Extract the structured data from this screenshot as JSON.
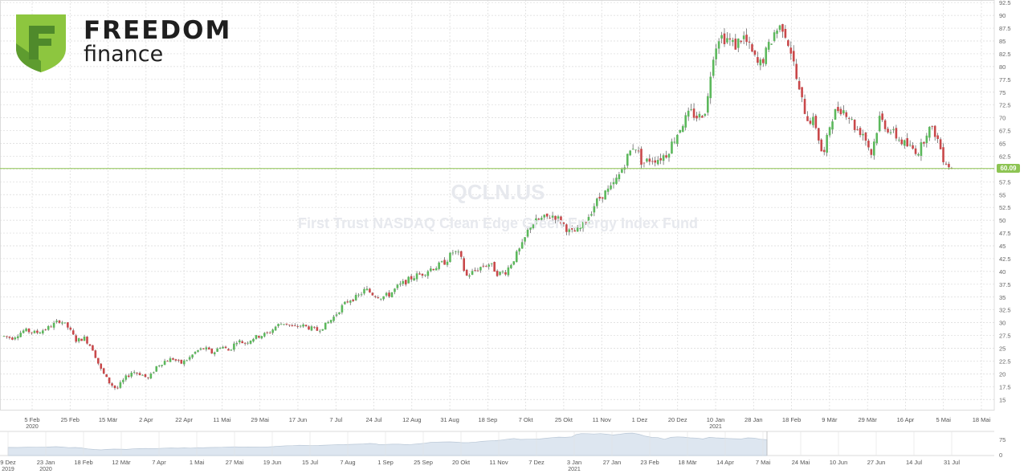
{
  "brand": {
    "name_line1": "FREEDOM",
    "name_line2": "finance",
    "colors": {
      "light": "#8dc63f",
      "dark": "#4f8a2b"
    }
  },
  "watermark": {
    "ticker": "QCLN.US",
    "name": "First Trust NASDAQ Clean Edge Green Energy Index Fund"
  },
  "last_price": "60.09",
  "chart_data": {
    "type": "candlestick",
    "title": "QCLN.US",
    "subtitle": "First Trust NASDAQ Clean Edge Green Energy Index Fund",
    "ylim": [
      13,
      93
    ],
    "y_ticks": [
      "15",
      "17.5",
      "20",
      "22.5",
      "25",
      "27.5",
      "30",
      "32.5",
      "35",
      "37.5",
      "40",
      "42.5",
      "45",
      "47.5",
      "50",
      "52.5",
      "55",
      "57.5",
      "60",
      "62.5",
      "65",
      "67.5",
      "70",
      "72.5",
      "75",
      "77.5",
      "80",
      "82.5",
      "85",
      "87.5",
      "90",
      "92.5"
    ],
    "x_ticks": [
      {
        "label": "5 Feb",
        "sub": "2020"
      },
      {
        "label": "25 Feb"
      },
      {
        "label": "15 Mär"
      },
      {
        "label": "2 Apr"
      },
      {
        "label": "22 Apr"
      },
      {
        "label": "11 Mai"
      },
      {
        "label": "29 Mai"
      },
      {
        "label": "17 Jun"
      },
      {
        "label": "7 Jul"
      },
      {
        "label": "24 Jul"
      },
      {
        "label": "12 Aug"
      },
      {
        "label": "31 Aug"
      },
      {
        "label": "18 Sep"
      },
      {
        "label": "7 Okt"
      },
      {
        "label": "25 Okt"
      },
      {
        "label": "11 Nov"
      },
      {
        "label": "1 Dez"
      },
      {
        "label": "20 Dez"
      },
      {
        "label": "10 Jan",
        "sub": "2021"
      },
      {
        "label": "28 Jan"
      },
      {
        "label": "18 Feb"
      },
      {
        "label": "9 Mär"
      },
      {
        "label": "29 Mär"
      },
      {
        "label": "16 Apr"
      },
      {
        "label": "5 Mai"
      },
      {
        "label": "18 Mai"
      }
    ],
    "anchors": [
      [
        0,
        27.5
      ],
      [
        15,
        27
      ],
      [
        30,
        28.5
      ],
      [
        45,
        28
      ],
      [
        60,
        29
      ],
      [
        75,
        30.5
      ],
      [
        85,
        29
      ],
      [
        95,
        26.5
      ],
      [
        105,
        27
      ],
      [
        115,
        25
      ],
      [
        125,
        21
      ],
      [
        135,
        18.5
      ],
      [
        145,
        17
      ],
      [
        155,
        19
      ],
      [
        165,
        20.5
      ],
      [
        175,
        20
      ],
      [
        185,
        19
      ],
      [
        195,
        21.5
      ],
      [
        205,
        22.5
      ],
      [
        215,
        23
      ],
      [
        225,
        22
      ],
      [
        235,
        23
      ],
      [
        245,
        24.5
      ],
      [
        255,
        25
      ],
      [
        265,
        24
      ],
      [
        275,
        25.5
      ],
      [
        285,
        24.5
      ],
      [
        295,
        26.5
      ],
      [
        305,
        26
      ],
      [
        315,
        27
      ],
      [
        325,
        27.5
      ],
      [
        335,
        28
      ],
      [
        345,
        29.5
      ],
      [
        355,
        30
      ],
      [
        365,
        29
      ],
      [
        375,
        29.5
      ],
      [
        385,
        29
      ],
      [
        395,
        28.5
      ],
      [
        405,
        29.5
      ],
      [
        415,
        31
      ],
      [
        425,
        33
      ],
      [
        435,
        34.5
      ],
      [
        445,
        35
      ],
      [
        455,
        36.5
      ],
      [
        465,
        35.5
      ],
      [
        475,
        35
      ],
      [
        485,
        35.5
      ],
      [
        495,
        37
      ],
      [
        505,
        38
      ],
      [
        515,
        39
      ],
      [
        525,
        39.5
      ],
      [
        535,
        40.5
      ],
      [
        545,
        41
      ],
      [
        555,
        42
      ],
      [
        565,
        44
      ],
      [
        573,
        43
      ],
      [
        580,
        39
      ],
      [
        590,
        40
      ],
      [
        600,
        41
      ],
      [
        610,
        41.5
      ],
      [
        620,
        39.5
      ],
      [
        630,
        40
      ],
      [
        640,
        42.5
      ],
      [
        650,
        45
      ],
      [
        660,
        49
      ],
      [
        670,
        50
      ],
      [
        680,
        50.5
      ],
      [
        690,
        51
      ],
      [
        700,
        49.5
      ],
      [
        710,
        47.5
      ],
      [
        720,
        48
      ],
      [
        730,
        50
      ],
      [
        740,
        53
      ],
      [
        750,
        55
      ],
      [
        760,
        56
      ],
      [
        770,
        58.5
      ],
      [
        780,
        62
      ],
      [
        790,
        65
      ],
      [
        800,
        61
      ],
      [
        810,
        62
      ],
      [
        820,
        62
      ],
      [
        830,
        63
      ],
      [
        840,
        66
      ],
      [
        850,
        69
      ],
      [
        860,
        71
      ],
      [
        870,
        70
      ],
      [
        880,
        72
      ],
      [
        887,
        82
      ],
      [
        895,
        86
      ],
      [
        905,
        85.5
      ],
      [
        915,
        84
      ],
      [
        925,
        86
      ],
      [
        935,
        83
      ],
      [
        945,
        80
      ],
      [
        955,
        83
      ],
      [
        965,
        87
      ],
      [
        975,
        88
      ],
      [
        985,
        83
      ],
      [
        995,
        75
      ],
      [
        1005,
        70
      ],
      [
        1015,
        69
      ],
      [
        1025,
        62
      ],
      [
        1035,
        70
      ],
      [
        1045,
        72
      ],
      [
        1055,
        71
      ],
      [
        1065,
        68
      ],
      [
        1075,
        67
      ],
      [
        1085,
        63
      ],
      [
        1095,
        70
      ],
      [
        1105,
        68
      ],
      [
        1115,
        66.5
      ],
      [
        1125,
        65
      ],
      [
        1135,
        64
      ],
      [
        1145,
        63.5
      ],
      [
        1155,
        68
      ],
      [
        1165,
        67
      ],
      [
        1175,
        62
      ],
      [
        1185,
        60.09
      ]
    ],
    "navigator": {
      "x_ticks": [
        {
          "label": "9 Dez",
          "sub": "2019"
        },
        {
          "label": "23 Jan",
          "sub": "2020"
        },
        {
          "label": "18 Feb"
        },
        {
          "label": "12 Mär"
        },
        {
          "label": "7 Apr"
        },
        {
          "label": "1 Mai"
        },
        {
          "label": "27 Mai"
        },
        {
          "label": "19 Jun"
        },
        {
          "label": "15 Jul"
        },
        {
          "label": "7 Aug"
        },
        {
          "label": "1 Sep"
        },
        {
          "label": "25 Sep"
        },
        {
          "label": "20 Okt"
        },
        {
          "label": "11 Nov"
        },
        {
          "label": "7 Dez"
        },
        {
          "label": "3 Jan",
          "sub": "2021"
        },
        {
          "label": "27 Jan"
        },
        {
          "label": "23 Feb"
        },
        {
          "label": "18 Mär"
        },
        {
          "label": "14 Apr"
        },
        {
          "label": "7 Mai"
        },
        {
          "label": "24 Mai"
        },
        {
          "label": "10 Jun"
        },
        {
          "label": "27 Jun"
        },
        {
          "label": "14 Jul"
        },
        {
          "label": "31 Jul"
        }
      ],
      "y_ticks": [
        "75",
        "0"
      ]
    },
    "colors": {
      "up": "#5cb85c",
      "down": "#c9484a",
      "price_line": "#8dc453",
      "grid": "#d9d9d9"
    }
  }
}
